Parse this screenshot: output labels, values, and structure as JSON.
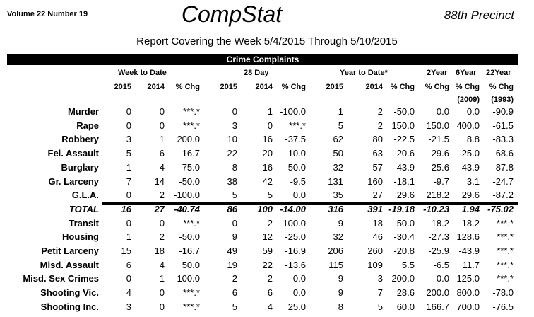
{
  "header": {
    "volume": "Volume 22  Number 19",
    "title": "CompStat",
    "precinct": "88th Precinct",
    "subtitle": "Report Covering the Week  5/4/2015  Through  5/10/2015",
    "section": "Crime Complaints"
  },
  "groups": {
    "week": "Week to Date",
    "day28": "28 Day",
    "ytd": "Year to Date*",
    "y2": "2Year",
    "y6": "6Year",
    "y22": "22Year"
  },
  "columns": [
    "2015",
    "2014",
    "% Chg",
    "2015",
    "2014",
    "% Chg",
    "2015",
    "2014",
    "% Chg",
    "% Chg",
    "% Chg",
    "% Chg"
  ],
  "subcolumns": [
    "",
    "",
    "",
    "",
    "",
    "",
    "",
    "",
    "",
    "",
    "(2009)",
    "(1993)"
  ],
  "rows": [
    {
      "label": "Murder",
      "values": [
        "0",
        "0",
        "***.*",
        "0",
        "1",
        "-100.0",
        "1",
        "2",
        "-50.0",
        "0.0",
        "0.0",
        "-90.9"
      ]
    },
    {
      "label": "Rape",
      "values": [
        "0",
        "0",
        "***.*",
        "3",
        "0",
        "***.*",
        "5",
        "2",
        "150.0",
        "150.0",
        "400.0",
        "-61.5"
      ]
    },
    {
      "label": "Robbery",
      "values": [
        "3",
        "1",
        "200.0",
        "10",
        "16",
        "-37.5",
        "62",
        "80",
        "-22.5",
        "-21.5",
        "8.8",
        "-83.3"
      ]
    },
    {
      "label": "Fel. Assault",
      "values": [
        "5",
        "6",
        "-16.7",
        "22",
        "20",
        "10.0",
        "50",
        "63",
        "-20.6",
        "-29.6",
        "25.0",
        "-68.6"
      ]
    },
    {
      "label": "Burglary",
      "values": [
        "1",
        "4",
        "-75.0",
        "8",
        "16",
        "-50.0",
        "32",
        "57",
        "-43.9",
        "-25.6",
        "-43.9",
        "-87.8"
      ]
    },
    {
      "label": "Gr. Larceny",
      "values": [
        "7",
        "14",
        "-50.0",
        "38",
        "42",
        "-9.5",
        "131",
        "160",
        "-18.1",
        "-9.7",
        "3.1",
        "-24.7"
      ]
    },
    {
      "label": "G.L.A.",
      "values": [
        "0",
        "2",
        "-100.0",
        "5",
        "5",
        "0.0",
        "35",
        "27",
        "29.6",
        "218.2",
        "29.6",
        "-87.2"
      ]
    },
    {
      "label": "TOTAL",
      "total": true,
      "values": [
        "16",
        "27",
        "-40.74",
        "86",
        "100",
        "-14.00",
        "316",
        "391",
        "-19.18",
        "-10.23",
        "1.94",
        "-75.02"
      ]
    },
    {
      "label": "Transit",
      "values": [
        "0",
        "0",
        "***.*",
        "0",
        "2",
        "-100.0",
        "9",
        "18",
        "-50.0",
        "-18.2",
        "-18.2",
        "***.*"
      ]
    },
    {
      "label": "Housing",
      "values": [
        "1",
        "2",
        "-50.0",
        "9",
        "12",
        "-25.0",
        "32",
        "46",
        "-30.4",
        "-27.3",
        "128.6",
        "***.*"
      ]
    },
    {
      "label": "Petit Larceny",
      "values": [
        "15",
        "18",
        "-16.7",
        "49",
        "59",
        "-16.9",
        "206",
        "260",
        "-20.8",
        "-25.9",
        "-43.9",
        "***.*"
      ]
    },
    {
      "label": "Misd. Assault",
      "values": [
        "6",
        "4",
        "50.0",
        "19",
        "22",
        "-13.6",
        "115",
        "109",
        "5.5",
        "-6.5",
        "11.7",
        "***.*"
      ]
    },
    {
      "label": "Misd. Sex Crimes",
      "values": [
        "0",
        "1",
        "-100.0",
        "2",
        "2",
        "0.0",
        "9",
        "3",
        "200.0",
        "0.0",
        "125.0",
        "***.*"
      ]
    },
    {
      "label": "Shooting Vic.",
      "values": [
        "4",
        "0",
        "***.*",
        "6",
        "6",
        "0.0",
        "9",
        "7",
        "28.6",
        "200.0",
        "800.0",
        "-78.0"
      ]
    },
    {
      "label": "Shooting Inc.",
      "values": [
        "3",
        "0",
        "***.*",
        "5",
        "4",
        "25.0",
        "8",
        "5",
        "60.0",
        "166.7",
        "700.0",
        "-76.5"
      ]
    }
  ]
}
